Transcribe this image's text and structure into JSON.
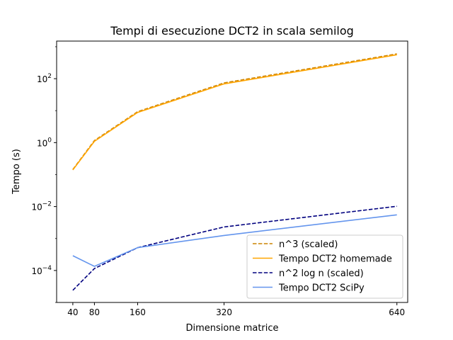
{
  "chart_data": {
    "type": "line",
    "title": "Tempi di esecuzione DCT2 in scala semilog",
    "xlabel": "Dimensione matrice",
    "ylabel": "Tempo (s)",
    "yscale": "log",
    "grid": false,
    "legend_position": "bottom-right",
    "xlim": [
      10,
      660
    ],
    "ylim": [
      1e-05,
      1500
    ],
    "x_ticks": [
      40,
      80,
      160,
      320,
      640
    ],
    "x_tick_labels": [
      "40",
      "80",
      "160",
      "320",
      "640"
    ],
    "y_ticks": [
      0.0001,
      0.01,
      1,
      100
    ],
    "y_tick_labels": [
      {
        "base": "10",
        "exp": "−4"
      },
      {
        "base": "10",
        "exp": "−2"
      },
      {
        "base": "10",
        "exp": "0"
      },
      {
        "base": "10",
        "exp": "2"
      }
    ],
    "x": [
      40,
      80,
      160,
      320,
      640
    ],
    "series": [
      {
        "name": "n^3 (scaled)",
        "color": "#cc8400",
        "style": "dashed",
        "values": [
          0.145,
          1.16,
          9.3,
          74,
          595
        ]
      },
      {
        "name": "Tempo DCT2 homemade",
        "color": "#ffa500",
        "style": "solid",
        "values": [
          0.14,
          1.1,
          8.8,
          69,
          560
        ]
      },
      {
        "name": "n^2 log n (scaled)",
        "color": "#00007f",
        "style": "dashed",
        "values": [
          2.4e-05,
          0.000115,
          0.00052,
          0.0023,
          0.0102
        ]
      },
      {
        "name": "Tempo DCT2 SciPy",
        "color": "#6495ed",
        "style": "solid",
        "values": [
          0.00029,
          0.000135,
          0.00052,
          0.00125,
          0.0055
        ]
      }
    ]
  }
}
